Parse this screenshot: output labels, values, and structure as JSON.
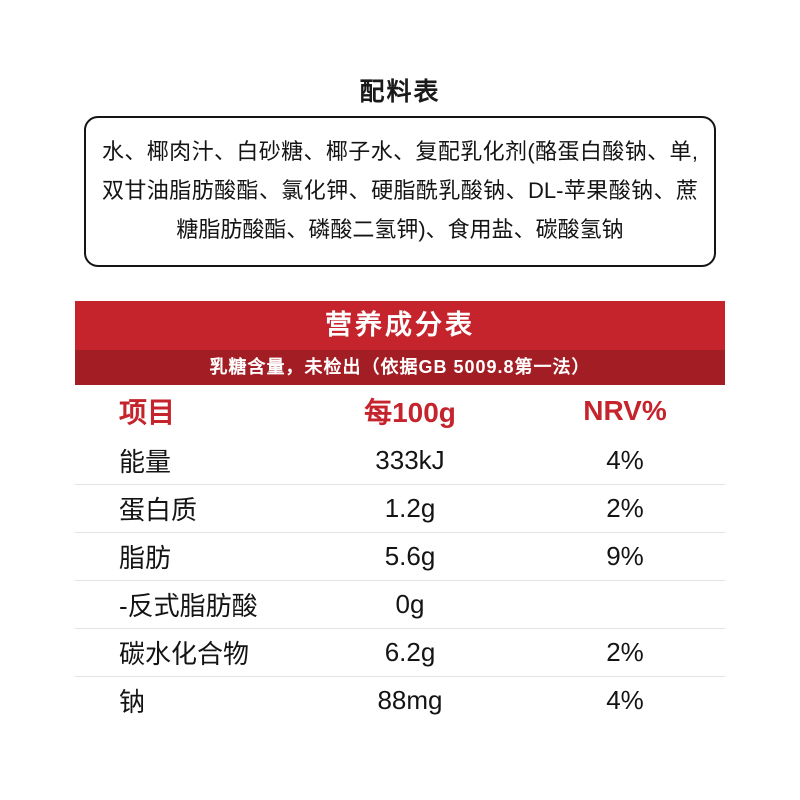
{
  "ingredients": {
    "title": "配料表",
    "text": "水、椰肉汁、白砂糖、椰子水、复配乳化剂(酪蛋白酸钠、单,双甘油脂肪酸酯、氯化钾、硬脂酰乳酸钠、DL-苹果酸钠、蔗糖脂肪酸酯、磷酸二氢钾)、食用盐、碳酸氢钠"
  },
  "nutrition": {
    "title": "营养成分表",
    "subtitle": "乳糖含量，未检出（依据GB 5009.8第一法）",
    "table": {
      "headers": [
        "项目",
        "每100g",
        "NRV%"
      ],
      "rows": [
        {
          "name": "能量",
          "per100g": "333kJ",
          "nrv": "4%"
        },
        {
          "name": "蛋白质",
          "per100g": "1.2g",
          "nrv": "2%"
        },
        {
          "name": "脂肪",
          "per100g": "5.6g",
          "nrv": "9%"
        },
        {
          "name": "-反式脂肪酸",
          "per100g": "0g",
          "nrv": ""
        },
        {
          "name": "碳水化合物",
          "per100g": "6.2g",
          "nrv": "2%"
        },
        {
          "name": "钠",
          "per100g": "88mg",
          "nrv": "4%"
        }
      ]
    },
    "colors": {
      "banner_red": "#c5242d",
      "banner_dark_red": "#a31e24",
      "header_text_red": "#c5242d"
    }
  }
}
